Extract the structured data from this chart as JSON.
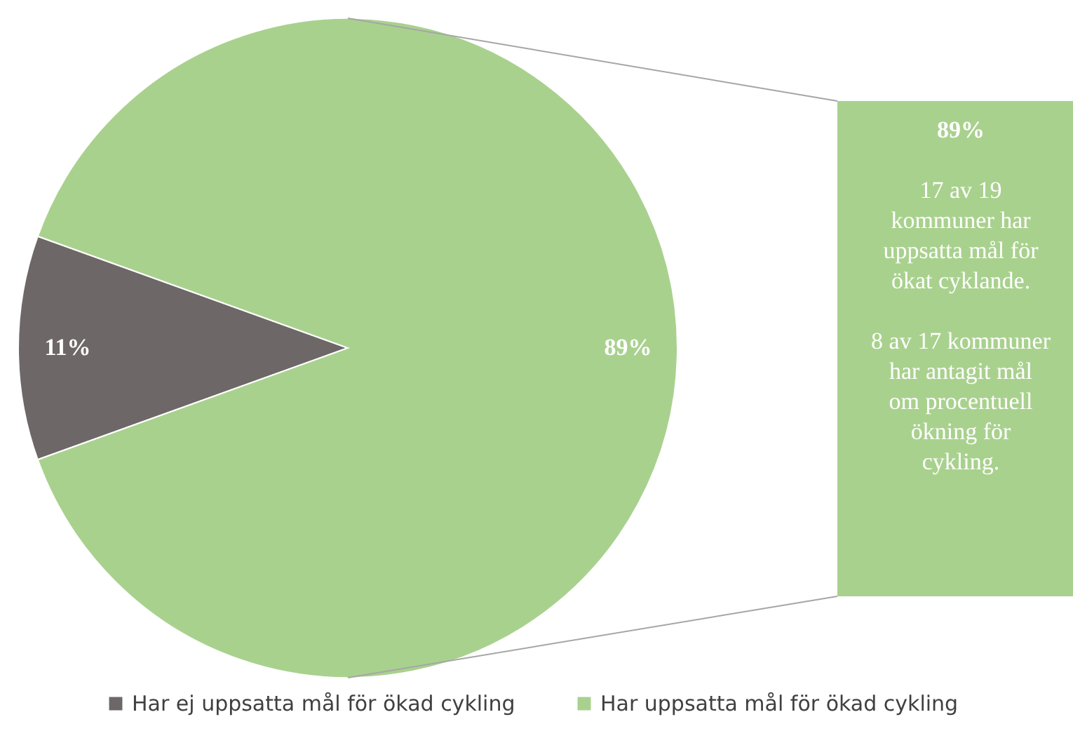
{
  "chart_data": {
    "type": "pie",
    "categories": [
      "Har ej uppsatta mål för ökad cykling",
      "Har uppsatta mål för ökad cykling"
    ],
    "values": [
      11,
      89
    ],
    "colors": [
      "#6e6767",
      "#a9d18e"
    ],
    "value_labels": [
      "11%",
      "89%"
    ],
    "legend": "bottom",
    "annotations": [
      "89%",
      "17 av 19 kommuner har uppsatta mål för ökat cyklande.",
      "8 av 17 kommuner har antagit mål om procentuell ökning för cykling."
    ]
  }
}
